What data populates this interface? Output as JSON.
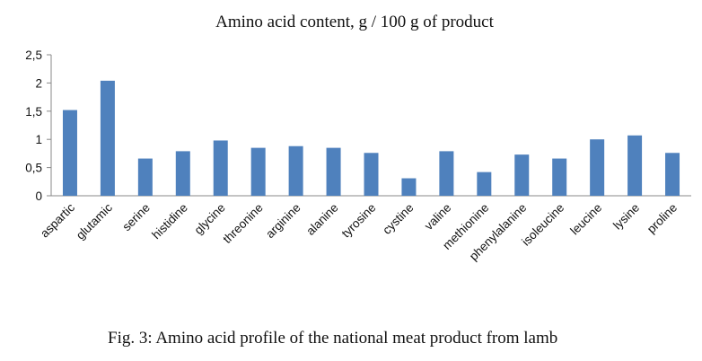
{
  "chart_data": {
    "type": "bar",
    "title": "Amino acid content, g / 100 g of product",
    "xlabel": "",
    "ylabel": "",
    "categories": [
      "aspartic",
      "glutamic",
      "serine",
      "histidine",
      "glycine",
      "threonine",
      "arginine",
      "alanine",
      "tyrosine",
      "cystine",
      "valine",
      "methionine",
      "phenylalanine",
      "isoleucine",
      "leucine",
      "lysine",
      "proline"
    ],
    "values": [
      1.52,
      2.04,
      0.66,
      0.79,
      0.98,
      0.85,
      0.88,
      0.85,
      0.76,
      0.31,
      0.79,
      0.42,
      0.73,
      0.66,
      1.0,
      1.07,
      0.76
    ],
    "ylim": [
      0,
      2.5
    ],
    "yticks": [
      "0",
      "0,5",
      "1",
      "1,5",
      "2",
      "2,5"
    ],
    "grid": false,
    "legend": "none",
    "bar_color": "#4f81bd"
  },
  "caption": "Fig. 3: Amino acid profile of the national meat product from lamb"
}
